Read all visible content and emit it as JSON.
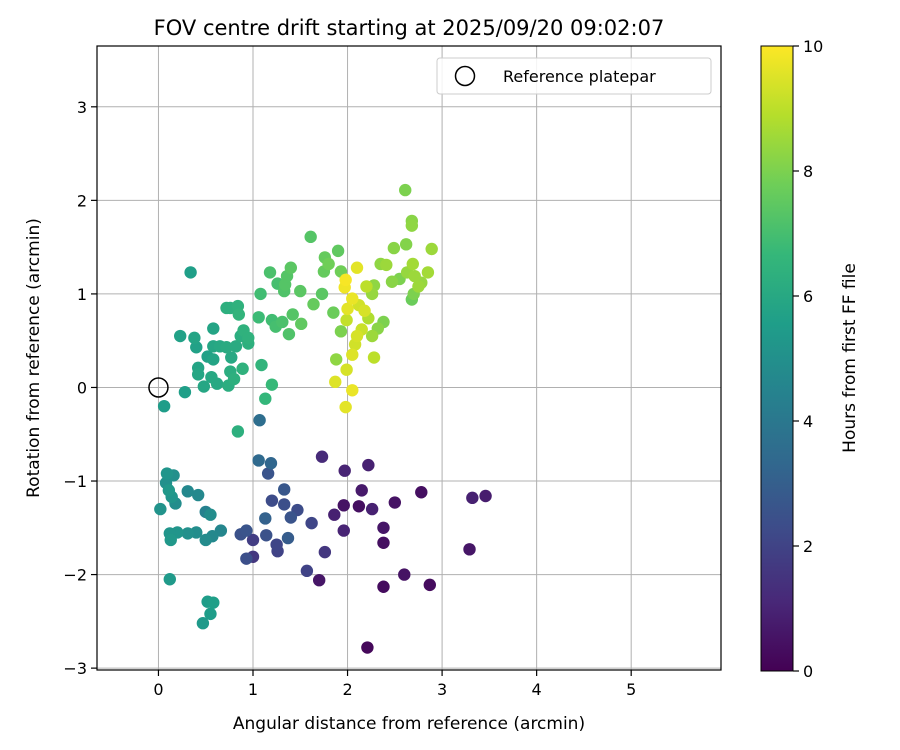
{
  "chart_data": {
    "type": "scatter",
    "title": "FOV centre drift starting at 2025/09/20 09:02:07",
    "xlabel": "Angular distance from reference (arcmin)",
    "ylabel": "Rotation from reference (arcmin)",
    "xlim": [
      -0.65,
      5.95
    ],
    "ylim": [
      -3.02,
      3.65
    ],
    "xticks": [
      "0",
      "1",
      "2",
      "3",
      "4",
      "5"
    ],
    "xtick_values": [
      0,
      1,
      2,
      3,
      4,
      5
    ],
    "yticks": [
      "−3",
      "−2",
      "−1",
      "0",
      "1",
      "2",
      "3"
    ],
    "ytick_values": [
      -3,
      -2,
      -1,
      0,
      1,
      2,
      3
    ],
    "grid": true,
    "legend": {
      "position": "top-right",
      "entries": [
        {
          "label": "Reference platepar",
          "marker": "open-circle"
        }
      ]
    },
    "reference_point": {
      "x": 0,
      "y": 0
    },
    "colorbar": {
      "label": "Hours from first FF file",
      "range": [
        0,
        10
      ],
      "ticks": [
        "0",
        "2",
        "4",
        "6",
        "8",
        "10"
      ],
      "tick_values": [
        0,
        2,
        4,
        6,
        8,
        10
      ],
      "colormap": [
        "#440154",
        "#482878",
        "#3e4a89",
        "#31688e",
        "#26828e",
        "#1f9e89",
        "#35b779",
        "#6ece58",
        "#b5de2b",
        "#fde725"
      ]
    },
    "series": [
      {
        "points": [
          {
            "x": 2.21,
            "y": -2.78,
            "t": 0.2
          },
          {
            "x": 2.38,
            "y": -2.13,
            "t": 0.3
          },
          {
            "x": 2.87,
            "y": -2.11,
            "t": 0.3
          },
          {
            "x": 2.6,
            "y": -2.0,
            "t": 0.5
          },
          {
            "x": 1.7,
            "y": -2.06,
            "t": 0.6
          },
          {
            "x": 2.38,
            "y": -1.66,
            "t": 0.4
          },
          {
            "x": 2.38,
            "y": -1.5,
            "t": 0.6
          },
          {
            "x": 3.29,
            "y": -1.73,
            "t": 0.6
          },
          {
            "x": 3.32,
            "y": -1.18,
            "t": 0.9
          },
          {
            "x": 3.46,
            "y": -1.16,
            "t": 0.8
          },
          {
            "x": 2.78,
            "y": -1.12,
            "t": 0.4
          },
          {
            "x": 2.5,
            "y": -1.23,
            "t": 0.5
          },
          {
            "x": 2.26,
            "y": -1.3,
            "t": 0.9
          },
          {
            "x": 2.12,
            "y": -1.27,
            "t": 0.4
          },
          {
            "x": 1.96,
            "y": -1.26,
            "t": 0.5
          },
          {
            "x": 2.15,
            "y": -1.1,
            "t": 0.7
          },
          {
            "x": 2.22,
            "y": -0.83,
            "t": 0.9
          },
          {
            "x": 1.97,
            "y": -0.89,
            "t": 1.0
          },
          {
            "x": 1.73,
            "y": -0.74,
            "t": 1.2
          },
          {
            "x": 1.86,
            "y": -1.36,
            "t": 0.9
          },
          {
            "x": 1.96,
            "y": -1.53,
            "t": 1.0
          },
          {
            "x": 1.76,
            "y": -1.76,
            "t": 1.6
          },
          {
            "x": 1.57,
            "y": -1.96,
            "t": 2.0
          },
          {
            "x": 1.62,
            "y": -1.45,
            "t": 2.1
          },
          {
            "x": 1.47,
            "y": -1.31,
            "t": 2.3
          },
          {
            "x": 1.4,
            "y": -1.39,
            "t": 2.6
          },
          {
            "x": 1.33,
            "y": -1.25,
            "t": 2.4
          },
          {
            "x": 1.33,
            "y": -1.09,
            "t": 2.7
          },
          {
            "x": 1.2,
            "y": -1.21,
            "t": 2.3
          },
          {
            "x": 1.25,
            "y": -1.68,
            "t": 2.1
          },
          {
            "x": 1.26,
            "y": -1.75,
            "t": 2.0
          },
          {
            "x": 1.14,
            "y": -1.58,
            "t": 2.5
          },
          {
            "x": 1.37,
            "y": -1.61,
            "t": 2.9
          },
          {
            "x": 1.13,
            "y": -1.4,
            "t": 3.1
          },
          {
            "x": 1.0,
            "y": -1.63,
            "t": 1.8
          },
          {
            "x": 1.0,
            "y": -1.81,
            "t": 1.6
          },
          {
            "x": 0.93,
            "y": -1.83,
            "t": 2.4
          },
          {
            "x": 0.93,
            "y": -1.53,
            "t": 2.6
          },
          {
            "x": 0.87,
            "y": -1.57,
            "t": 2.5
          },
          {
            "x": 1.16,
            "y": -0.92,
            "t": 2.6
          },
          {
            "x": 1.19,
            "y": -0.81,
            "t": 3.3
          },
          {
            "x": 1.06,
            "y": -0.78,
            "t": 3.4
          },
          {
            "x": 1.07,
            "y": -0.35,
            "t": 3.6
          },
          {
            "x": 0.66,
            "y": -1.53,
            "t": 4.6
          },
          {
            "x": 0.57,
            "y": -1.59,
            "t": 4.7
          },
          {
            "x": 0.5,
            "y": -1.63,
            "t": 4.8
          },
          {
            "x": 0.55,
            "y": -1.36,
            "t": 4.9
          },
          {
            "x": 0.5,
            "y": -1.33,
            "t": 4.4
          },
          {
            "x": 0.42,
            "y": -1.15,
            "t": 4.7
          },
          {
            "x": 0.4,
            "y": -1.55,
            "t": 4.9
          },
          {
            "x": 0.31,
            "y": -1.56,
            "t": 5.0
          },
          {
            "x": 0.31,
            "y": -1.11,
            "t": 4.7
          },
          {
            "x": 0.2,
            "y": -1.55,
            "t": 5.2
          },
          {
            "x": 0.13,
            "y": -1.63,
            "t": 5.3
          },
          {
            "x": 0.12,
            "y": -1.56,
            "t": 5.2
          },
          {
            "x": 0.18,
            "y": -1.24,
            "t": 4.9
          },
          {
            "x": 0.14,
            "y": -1.17,
            "t": 5.2
          },
          {
            "x": 0.11,
            "y": -1.1,
            "t": 5.3
          },
          {
            "x": 0.08,
            "y": -1.02,
            "t": 5.0
          },
          {
            "x": 0.09,
            "y": -0.92,
            "t": 5.2
          },
          {
            "x": 0.16,
            "y": -0.94,
            "t": 5.0
          },
          {
            "x": 0.02,
            "y": -1.3,
            "t": 5.1
          },
          {
            "x": 0.12,
            "y": -2.05,
            "t": 5.4
          },
          {
            "x": 0.52,
            "y": -2.29,
            "t": 5.5
          },
          {
            "x": 0.58,
            "y": -2.3,
            "t": 5.6
          },
          {
            "x": 0.55,
            "y": -2.42,
            "t": 5.5
          },
          {
            "x": 0.47,
            "y": -2.52,
            "t": 5.4
          },
          {
            "x": 0.06,
            "y": -0.2,
            "t": 5.5
          },
          {
            "x": 0.28,
            "y": -0.05,
            "t": 5.6
          },
          {
            "x": 0.34,
            "y": 1.23,
            "t": 5.6
          },
          {
            "x": 0.23,
            "y": 0.55,
            "t": 5.7
          },
          {
            "x": 0.38,
            "y": 0.53,
            "t": 5.8
          },
          {
            "x": 0.4,
            "y": 0.43,
            "t": 5.7
          },
          {
            "x": 0.42,
            "y": 0.21,
            "t": 5.8
          },
          {
            "x": 0.42,
            "y": 0.14,
            "t": 5.9
          },
          {
            "x": 0.48,
            "y": 0.01,
            "t": 5.9
          },
          {
            "x": 0.52,
            "y": 0.33,
            "t": 5.7
          },
          {
            "x": 0.58,
            "y": 0.3,
            "t": 5.8
          },
          {
            "x": 0.56,
            "y": 0.11,
            "t": 6.0
          },
          {
            "x": 0.62,
            "y": 0.04,
            "t": 6.0
          },
          {
            "x": 0.58,
            "y": 0.44,
            "t": 5.9
          },
          {
            "x": 0.65,
            "y": 0.44,
            "t": 6.0
          },
          {
            "x": 0.58,
            "y": 0.63,
            "t": 5.8
          },
          {
            "x": 0.72,
            "y": 0.43,
            "t": 6.1
          },
          {
            "x": 0.77,
            "y": 0.32,
            "t": 6.0
          },
          {
            "x": 0.76,
            "y": 0.17,
            "t": 6.2
          },
          {
            "x": 0.8,
            "y": 0.09,
            "t": 6.3
          },
          {
            "x": 0.74,
            "y": 0.02,
            "t": 6.2
          },
          {
            "x": 0.82,
            "y": 0.44,
            "t": 6.1
          },
          {
            "x": 0.87,
            "y": 0.55,
            "t": 6.2
          },
          {
            "x": 0.9,
            "y": 0.61,
            "t": 6.4
          },
          {
            "x": 0.95,
            "y": 0.53,
            "t": 6.4
          },
          {
            "x": 0.95,
            "y": 0.47,
            "t": 6.3
          },
          {
            "x": 0.89,
            "y": 0.2,
            "t": 6.4
          },
          {
            "x": 0.72,
            "y": 0.85,
            "t": 6.3
          },
          {
            "x": 0.76,
            "y": 0.85,
            "t": 6.3
          },
          {
            "x": 0.84,
            "y": 0.87,
            "t": 6.4
          },
          {
            "x": 0.85,
            "y": 0.78,
            "t": 6.5
          },
          {
            "x": 0.84,
            "y": -0.47,
            "t": 6.3
          },
          {
            "x": 1.09,
            "y": 0.24,
            "t": 6.5
          },
          {
            "x": 1.13,
            "y": -0.12,
            "t": 6.6
          },
          {
            "x": 1.2,
            "y": 0.03,
            "t": 6.7
          },
          {
            "x": 1.06,
            "y": 0.75,
            "t": 6.8
          },
          {
            "x": 1.08,
            "y": 1.0,
            "t": 6.9
          },
          {
            "x": 1.2,
            "y": 0.72,
            "t": 6.9
          },
          {
            "x": 1.24,
            "y": 0.65,
            "t": 7.0
          },
          {
            "x": 1.31,
            "y": 0.7,
            "t": 7.1
          },
          {
            "x": 1.26,
            "y": 1.11,
            "t": 7.0
          },
          {
            "x": 1.18,
            "y": 1.23,
            "t": 7.1
          },
          {
            "x": 1.33,
            "y": 1.03,
            "t": 7.2
          },
          {
            "x": 1.34,
            "y": 1.1,
            "t": 7.3
          },
          {
            "x": 1.38,
            "y": 0.57,
            "t": 7.2
          },
          {
            "x": 1.42,
            "y": 0.78,
            "t": 7.3
          },
          {
            "x": 1.4,
            "y": 1.28,
            "t": 7.4
          },
          {
            "x": 1.36,
            "y": 1.19,
            "t": 7.3
          },
          {
            "x": 1.5,
            "y": 1.03,
            "t": 7.4
          },
          {
            "x": 1.51,
            "y": 0.68,
            "t": 7.5
          },
          {
            "x": 1.61,
            "y": 1.61,
            "t": 7.3
          },
          {
            "x": 1.64,
            "y": 0.89,
            "t": 7.6
          },
          {
            "x": 1.75,
            "y": 1.24,
            "t": 7.6
          },
          {
            "x": 1.76,
            "y": 1.39,
            "t": 7.6
          },
          {
            "x": 1.8,
            "y": 1.32,
            "t": 7.8
          },
          {
            "x": 1.85,
            "y": 0.8,
            "t": 7.7
          },
          {
            "x": 1.9,
            "y": 1.46,
            "t": 7.5
          },
          {
            "x": 1.93,
            "y": 1.24,
            "t": 7.8
          },
          {
            "x": 1.73,
            "y": 1.0,
            "t": 7.4
          },
          {
            "x": 1.93,
            "y": 0.6,
            "t": 8.0
          },
          {
            "x": 1.88,
            "y": 0.3,
            "t": 8.3
          },
          {
            "x": 1.87,
            "y": 0.06,
            "t": 9.5
          },
          {
            "x": 1.98,
            "y": -0.21,
            "t": 9.6
          },
          {
            "x": 1.99,
            "y": 0.19,
            "t": 9.4
          },
          {
            "x": 2.05,
            "y": -0.03,
            "t": 9.7
          },
          {
            "x": 2.05,
            "y": 0.35,
            "t": 9.5
          },
          {
            "x": 2.08,
            "y": 0.46,
            "t": 9.3
          },
          {
            "x": 2.1,
            "y": 0.55,
            "t": 9.4
          },
          {
            "x": 1.99,
            "y": 0.72,
            "t": 9.1
          },
          {
            "x": 2.0,
            "y": 0.84,
            "t": 9.6
          },
          {
            "x": 1.97,
            "y": 1.07,
            "t": 9.8
          },
          {
            "x": 1.98,
            "y": 1.15,
            "t": 9.9
          },
          {
            "x": 2.05,
            "y": 0.95,
            "t": 9.7
          },
          {
            "x": 2.1,
            "y": 1.28,
            "t": 9.6
          },
          {
            "x": 2.12,
            "y": 0.88,
            "t": 9.3
          },
          {
            "x": 2.15,
            "y": 0.62,
            "t": 9.2
          },
          {
            "x": 2.18,
            "y": 0.82,
            "t": 9.4
          },
          {
            "x": 2.2,
            "y": 1.08,
            "t": 9.0
          },
          {
            "x": 2.22,
            "y": 0.74,
            "t": 8.8
          },
          {
            "x": 2.26,
            "y": 0.55,
            "t": 8.5
          },
          {
            "x": 2.28,
            "y": 0.32,
            "t": 9.0
          },
          {
            "x": 2.26,
            "y": 1.0,
            "t": 8.4
          },
          {
            "x": 2.28,
            "y": 1.09,
            "t": 8.3
          },
          {
            "x": 2.32,
            "y": 0.63,
            "t": 8.2
          },
          {
            "x": 2.35,
            "y": 1.32,
            "t": 8.3
          },
          {
            "x": 2.38,
            "y": 0.7,
            "t": 8.0
          },
          {
            "x": 2.41,
            "y": 1.31,
            "t": 8.5
          },
          {
            "x": 2.47,
            "y": 1.13,
            "t": 8.2
          },
          {
            "x": 2.49,
            "y": 1.49,
            "t": 8.2
          },
          {
            "x": 2.55,
            "y": 1.16,
            "t": 8.0
          },
          {
            "x": 2.61,
            "y": 2.11,
            "t": 8.0
          },
          {
            "x": 2.62,
            "y": 1.53,
            "t": 8.1
          },
          {
            "x": 2.63,
            "y": 1.23,
            "t": 8.4
          },
          {
            "x": 2.68,
            "y": 1.78,
            "t": 8.2
          },
          {
            "x": 2.68,
            "y": 1.73,
            "t": 8.3
          },
          {
            "x": 2.69,
            "y": 1.32,
            "t": 8.6
          },
          {
            "x": 2.71,
            "y": 1.19,
            "t": 8.5
          },
          {
            "x": 2.7,
            "y": 1.0,
            "t": 8.0
          },
          {
            "x": 2.68,
            "y": 0.94,
            "t": 7.7
          },
          {
            "x": 2.75,
            "y": 1.08,
            "t": 8.5
          },
          {
            "x": 2.78,
            "y": 1.12,
            "t": 8.4
          },
          {
            "x": 2.85,
            "y": 1.23,
            "t": 8.6
          },
          {
            "x": 2.89,
            "y": 1.48,
            "t": 8.5
          }
        ]
      }
    ]
  }
}
